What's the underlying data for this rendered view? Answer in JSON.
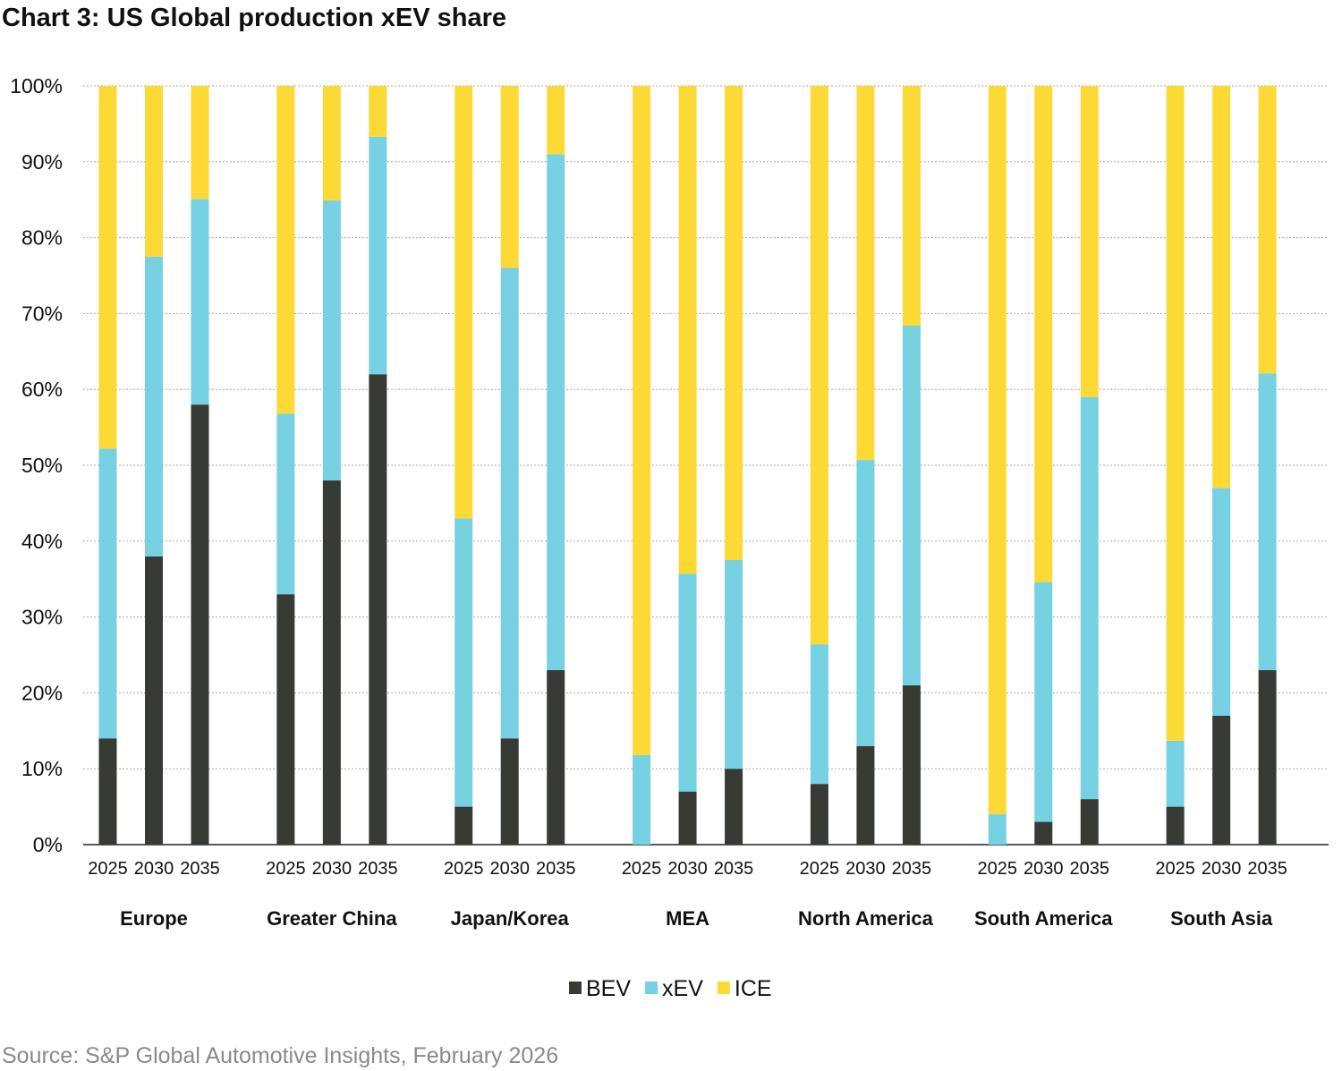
{
  "chart_data": {
    "type": "bar",
    "stacked": true,
    "title": "Chart 3: US Global production xEV share",
    "source": "Source: S&P Global Automotive Insights, February 2026",
    "xlabel": "",
    "ylabel": "",
    "ylim": [
      0,
      100
    ],
    "yticks": [
      "0%",
      "10%",
      "20%",
      "30%",
      "40%",
      "50%",
      "60%",
      "70%",
      "80%",
      "90%",
      "100%"
    ],
    "grid": true,
    "legend_position": "bottom-center",
    "groups": [
      "Europe",
      "Greater China",
      "Japan/Korea",
      "MEA",
      "North America",
      "South America",
      "South Asia"
    ],
    "years": [
      "2025",
      "2030",
      "2035"
    ],
    "colors": {
      "BEV": "#383a36",
      "xEV": "#76d1e3",
      "ICE": "#fdd935"
    },
    "series": [
      {
        "name": "BEV",
        "values": [
          [
            14,
            38,
            58
          ],
          [
            33,
            48,
            62
          ],
          [
            5,
            14,
            23
          ],
          [
            0,
            7,
            10
          ],
          [
            8,
            13,
            21
          ],
          [
            0,
            3,
            6
          ],
          [
            5,
            17,
            23
          ]
        ]
      },
      {
        "name": "xEV",
        "values": [
          [
            38.2,
            39.5,
            27.1
          ],
          [
            23.8,
            36.9,
            31.3
          ],
          [
            38,
            62,
            68
          ],
          [
            11.8,
            28.7,
            27.5
          ],
          [
            18.4,
            37.7,
            47.4
          ],
          [
            4,
            31.6,
            53
          ],
          [
            8.7,
            30,
            39.1
          ]
        ]
      },
      {
        "name": "ICE",
        "values": [
          [
            47.8,
            22.5,
            14.9
          ],
          [
            43.2,
            15.1,
            6.7
          ],
          [
            57,
            24,
            9
          ],
          [
            88.2,
            64.3,
            62.5
          ],
          [
            73.6,
            49.3,
            31.6
          ],
          [
            96,
            65.4,
            41
          ],
          [
            86.3,
            53,
            37.9
          ]
        ]
      }
    ]
  }
}
